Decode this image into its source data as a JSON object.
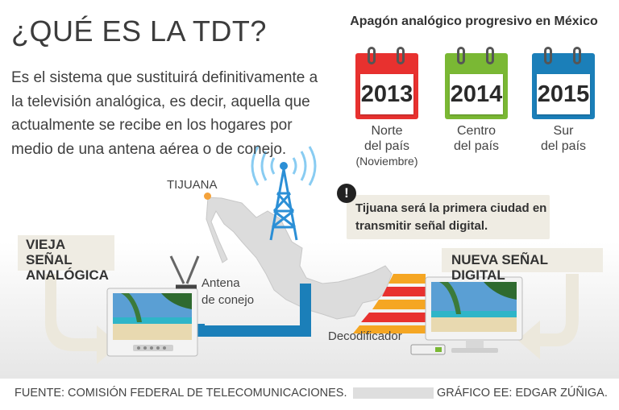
{
  "title": "¿QUÉ ES LA TDT?",
  "intro": "Es el sistema que sustituirá definitivamente a la televisión analógica, es decir, aquella que actualmente se recibe en los hogares por medio de una antena aérea o de conejo.",
  "calendar_title": "Apagón analógico progresivo en México",
  "calendars": [
    {
      "year": "2013",
      "region_line1": "Norte",
      "region_line2": "del país",
      "note": "(Noviembre)",
      "color": "#e8312f"
    },
    {
      "year": "2014",
      "region_line1": "Centro",
      "region_line2": "del país",
      "note": "",
      "color": "#7ab834"
    },
    {
      "year": "2015",
      "region_line1": "Sur",
      "region_line2": "del país",
      "note": "",
      "color": "#1b7fb9"
    }
  ],
  "map": {
    "city_label": "TIJUANA"
  },
  "notice": "Tijuana será la primera ciudad en transmitir señal digital.",
  "old_signal": {
    "line1": "VIEJA SEÑAL",
    "line2": "ANALÓGICA"
  },
  "new_signal": "NUEVA SEÑAL DIGITAL",
  "antenna_label": {
    "line1": "Antena",
    "line2": "de conejo"
  },
  "decoder_label": "Decodificador",
  "footer": {
    "source": "FUENTE: COMISIÓN FEDERAL DE TELECOMUNICACIONES.",
    "credit": "GRÁFICO EE: EDGAR ZÚÑIGA."
  },
  "colors": {
    "analog_cable": "#1b7fb9",
    "digital_stripes": [
      "#f5a623",
      "#e8312f"
    ],
    "arrow_fill": "#ece8dc"
  }
}
